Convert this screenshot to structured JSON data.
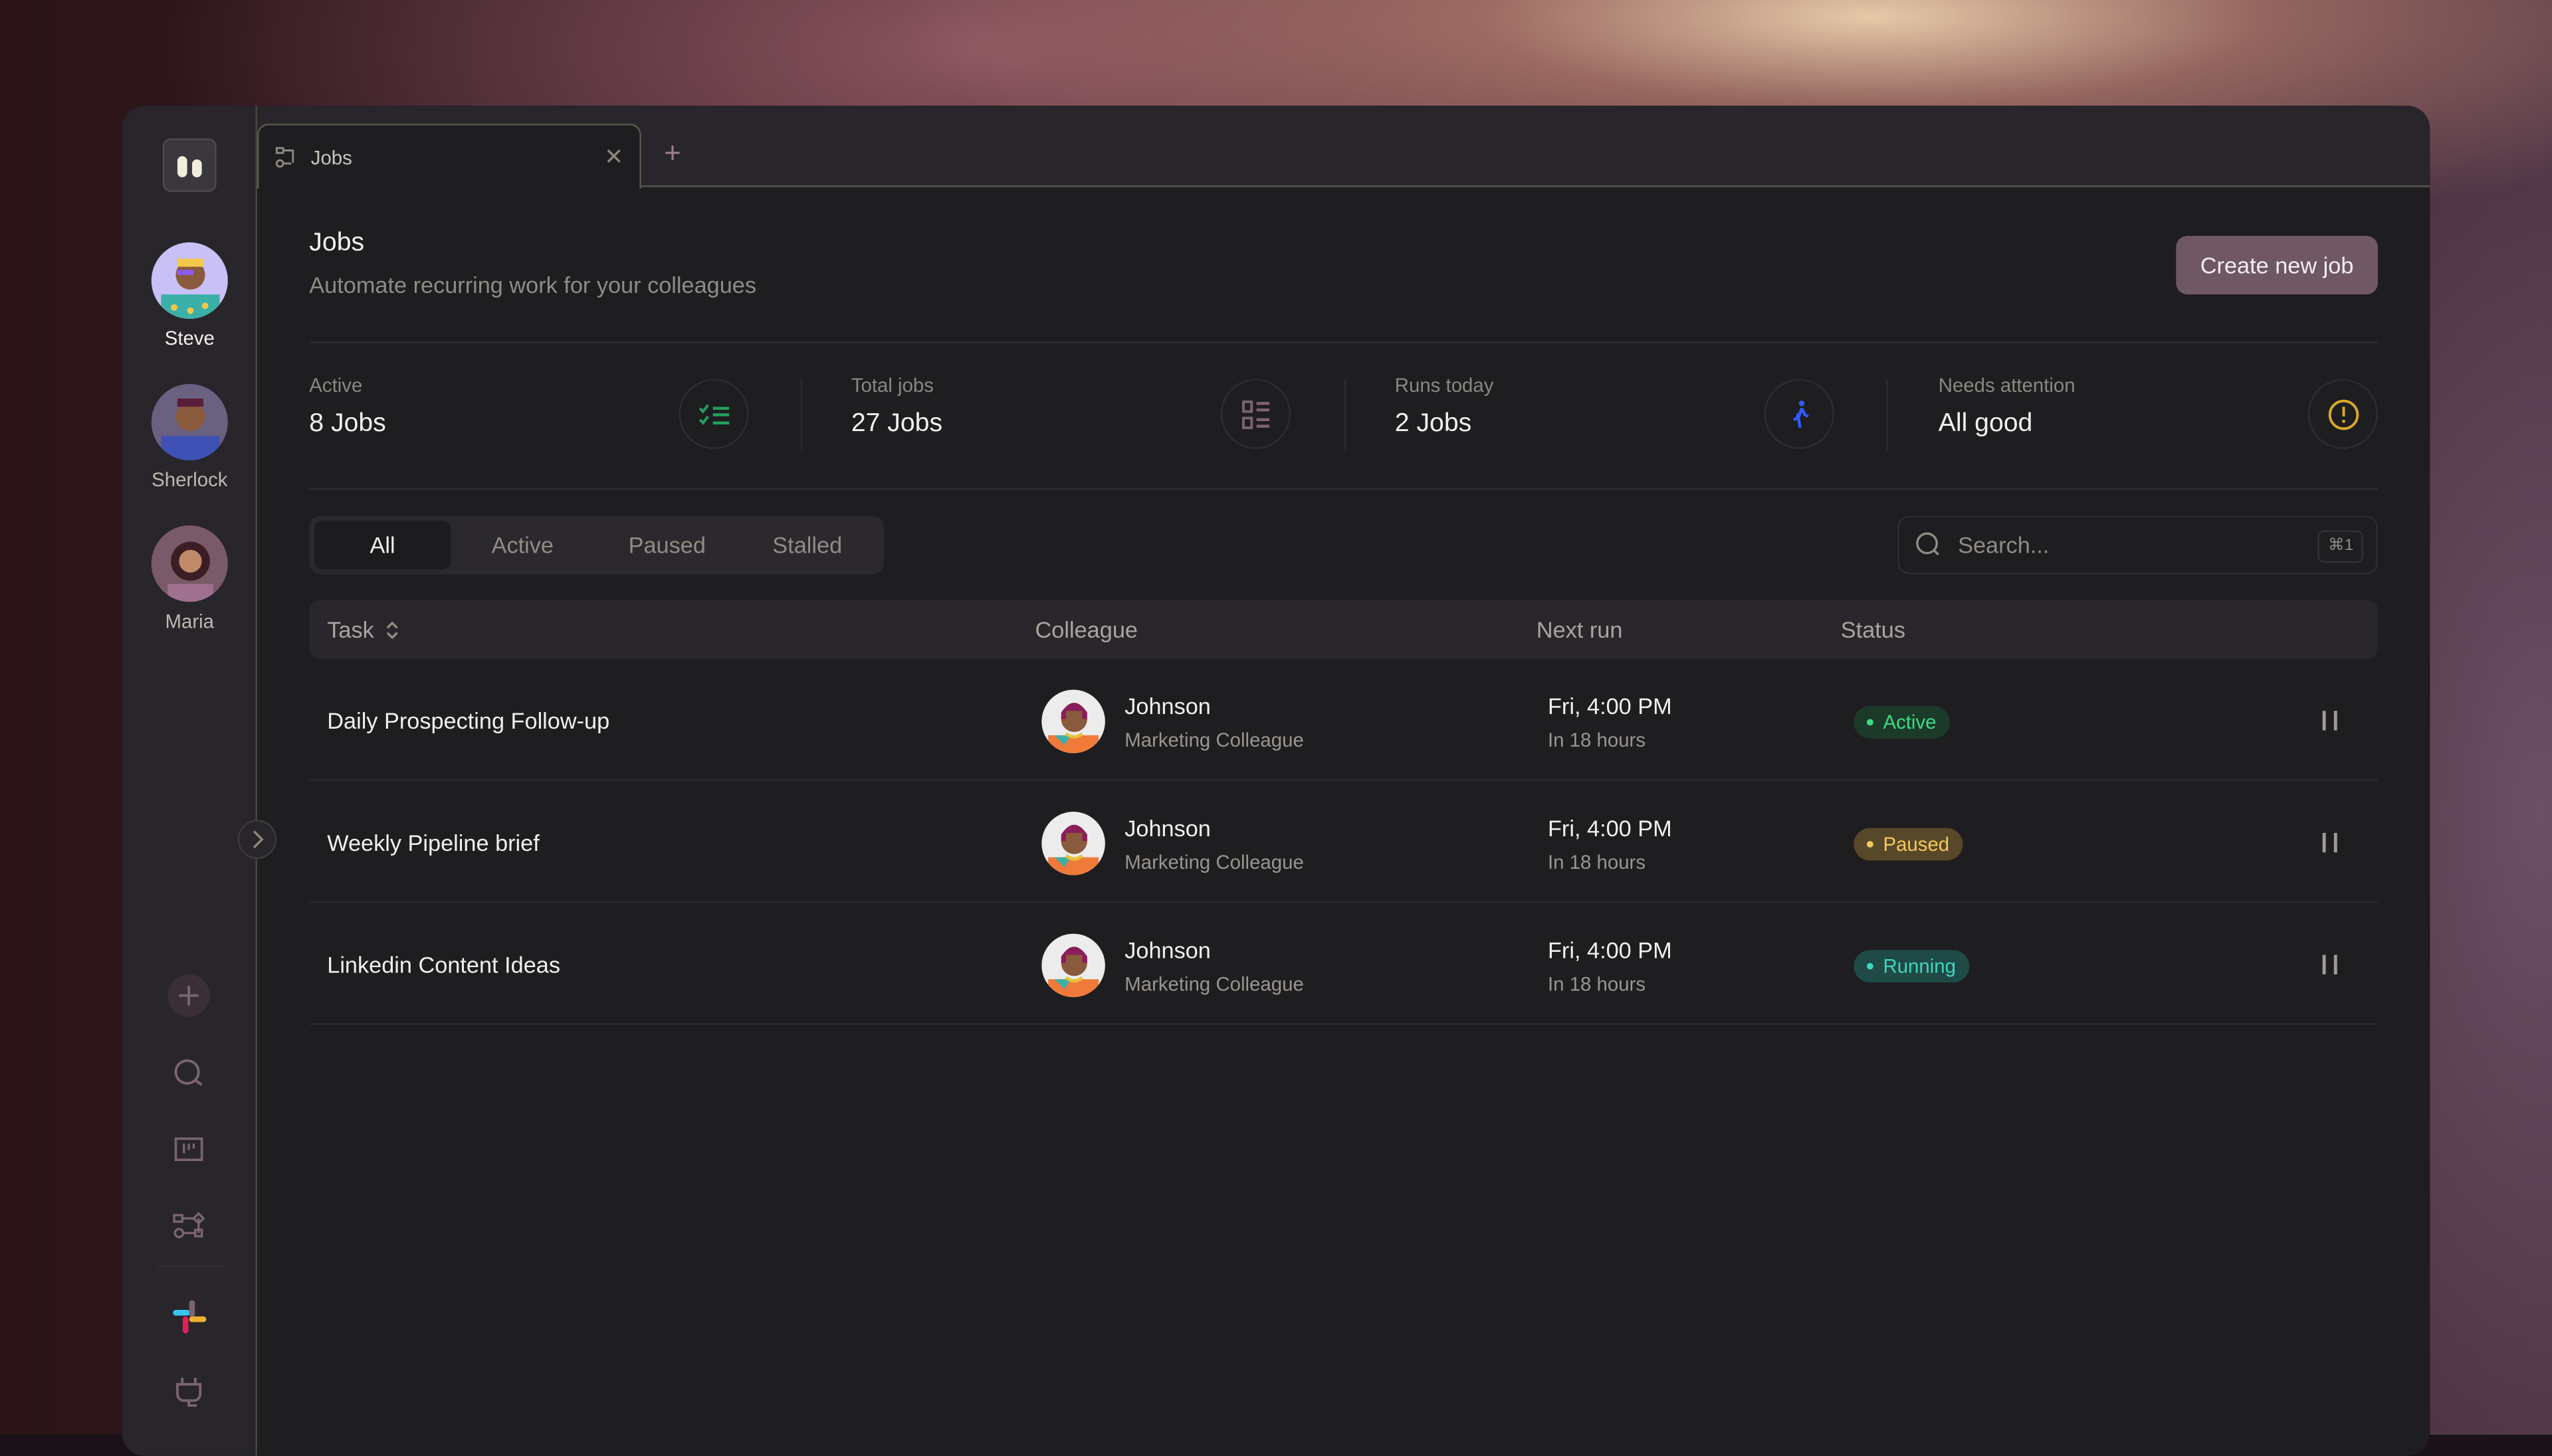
{
  "sidebar": {
    "agents": [
      {
        "name": "Steve"
      },
      {
        "name": "Sherlock"
      },
      {
        "name": "Maria"
      }
    ],
    "icons": [
      "plus-icon",
      "search-icon",
      "board-icon",
      "workflow-icon",
      "slack-icon",
      "plug-icon"
    ]
  },
  "tabs": [
    {
      "label": "Jobs",
      "icon": "workflow-icon"
    }
  ],
  "header": {
    "title": "Jobs",
    "subtitle": "Automate recurring work for your colleagues",
    "create_label": "Create new job"
  },
  "stats": [
    {
      "label": "Active",
      "value": "8 Jobs",
      "icon": "checklist-icon",
      "color": "#22a060"
    },
    {
      "label": "Total jobs",
      "value": "27 Jobs",
      "icon": "list-icon",
      "color": "#7a6470"
    },
    {
      "label": "Runs today",
      "value": "2 Jobs",
      "icon": "running-icon",
      "color": "#2f5bff"
    },
    {
      "label": "Needs attention",
      "value": "All good",
      "icon": "alert-circle-icon",
      "color": "#d9a82a"
    }
  ],
  "filters": {
    "options": [
      "All",
      "Active",
      "Paused",
      "Stalled"
    ],
    "selected": "All"
  },
  "search": {
    "placeholder": "Search...",
    "shortcut": "⌘1"
  },
  "table": {
    "columns": [
      "Task",
      "Colleague",
      "Next run",
      "Status"
    ],
    "rows": [
      {
        "task": "Daily Prospecting Follow-up",
        "colleague": "Johnson",
        "role": "Marketing Colleague",
        "next_run": "Fri, 4:00 PM",
        "relative": "In 18 hours",
        "status": "Active"
      },
      {
        "task": "Weekly Pipeline brief",
        "colleague": "Johnson",
        "role": "Marketing Colleague",
        "next_run": "Fri, 4:00 PM",
        "relative": "In 18 hours",
        "status": "Paused"
      },
      {
        "task": "Linkedin Content Ideas",
        "colleague": "Johnson",
        "role": "Marketing Colleague",
        "next_run": "Fri, 4:00 PM",
        "relative": "In 18 hours",
        "status": "Running"
      }
    ]
  },
  "status_colors": {
    "Active": {
      "fg": "#3ddc84",
      "bg": "#1c3a2a"
    },
    "Paused": {
      "fg": "#f5c85a",
      "bg": "#574829"
    },
    "Running": {
      "fg": "#3fd6c0",
      "bg": "#1f4a45"
    }
  }
}
